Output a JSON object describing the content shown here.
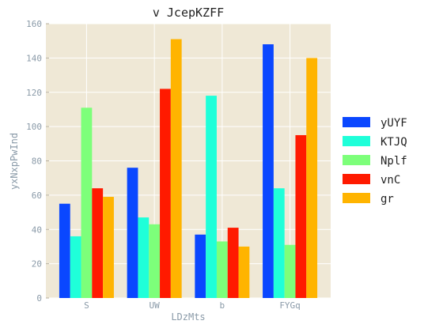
{
  "chart_data": {
    "type": "bar",
    "title": "v JcepKZFF",
    "xlabel": "LDzMts",
    "ylabel": "yxNxpPwInd",
    "ylim": [
      0,
      160
    ],
    "yticks": [
      0,
      20,
      40,
      60,
      80,
      100,
      120,
      140,
      160
    ],
    "categories": [
      "S",
      "UW",
      "b",
      "FYGq"
    ],
    "grid": true,
    "legend_position": "right",
    "background_color": "#efe8d6",
    "grid_color": "#ffffff",
    "series": [
      {
        "name": "yUYF",
        "color": "#0a47ff",
        "values": [
          55,
          76,
          37,
          148
        ]
      },
      {
        "name": "KTJQ",
        "color": "#1fffd9",
        "values": [
          36,
          47,
          118,
          64
        ]
      },
      {
        "name": "Nplf",
        "color": "#7dff7a",
        "values": [
          111,
          43,
          33,
          31
        ]
      },
      {
        "name": "vnC",
        "color": "#ff1a00",
        "values": [
          64,
          122,
          41,
          95
        ]
      },
      {
        "name": "gr",
        "color": "#ffb400",
        "values": [
          59,
          151,
          30,
          140
        ]
      }
    ]
  }
}
